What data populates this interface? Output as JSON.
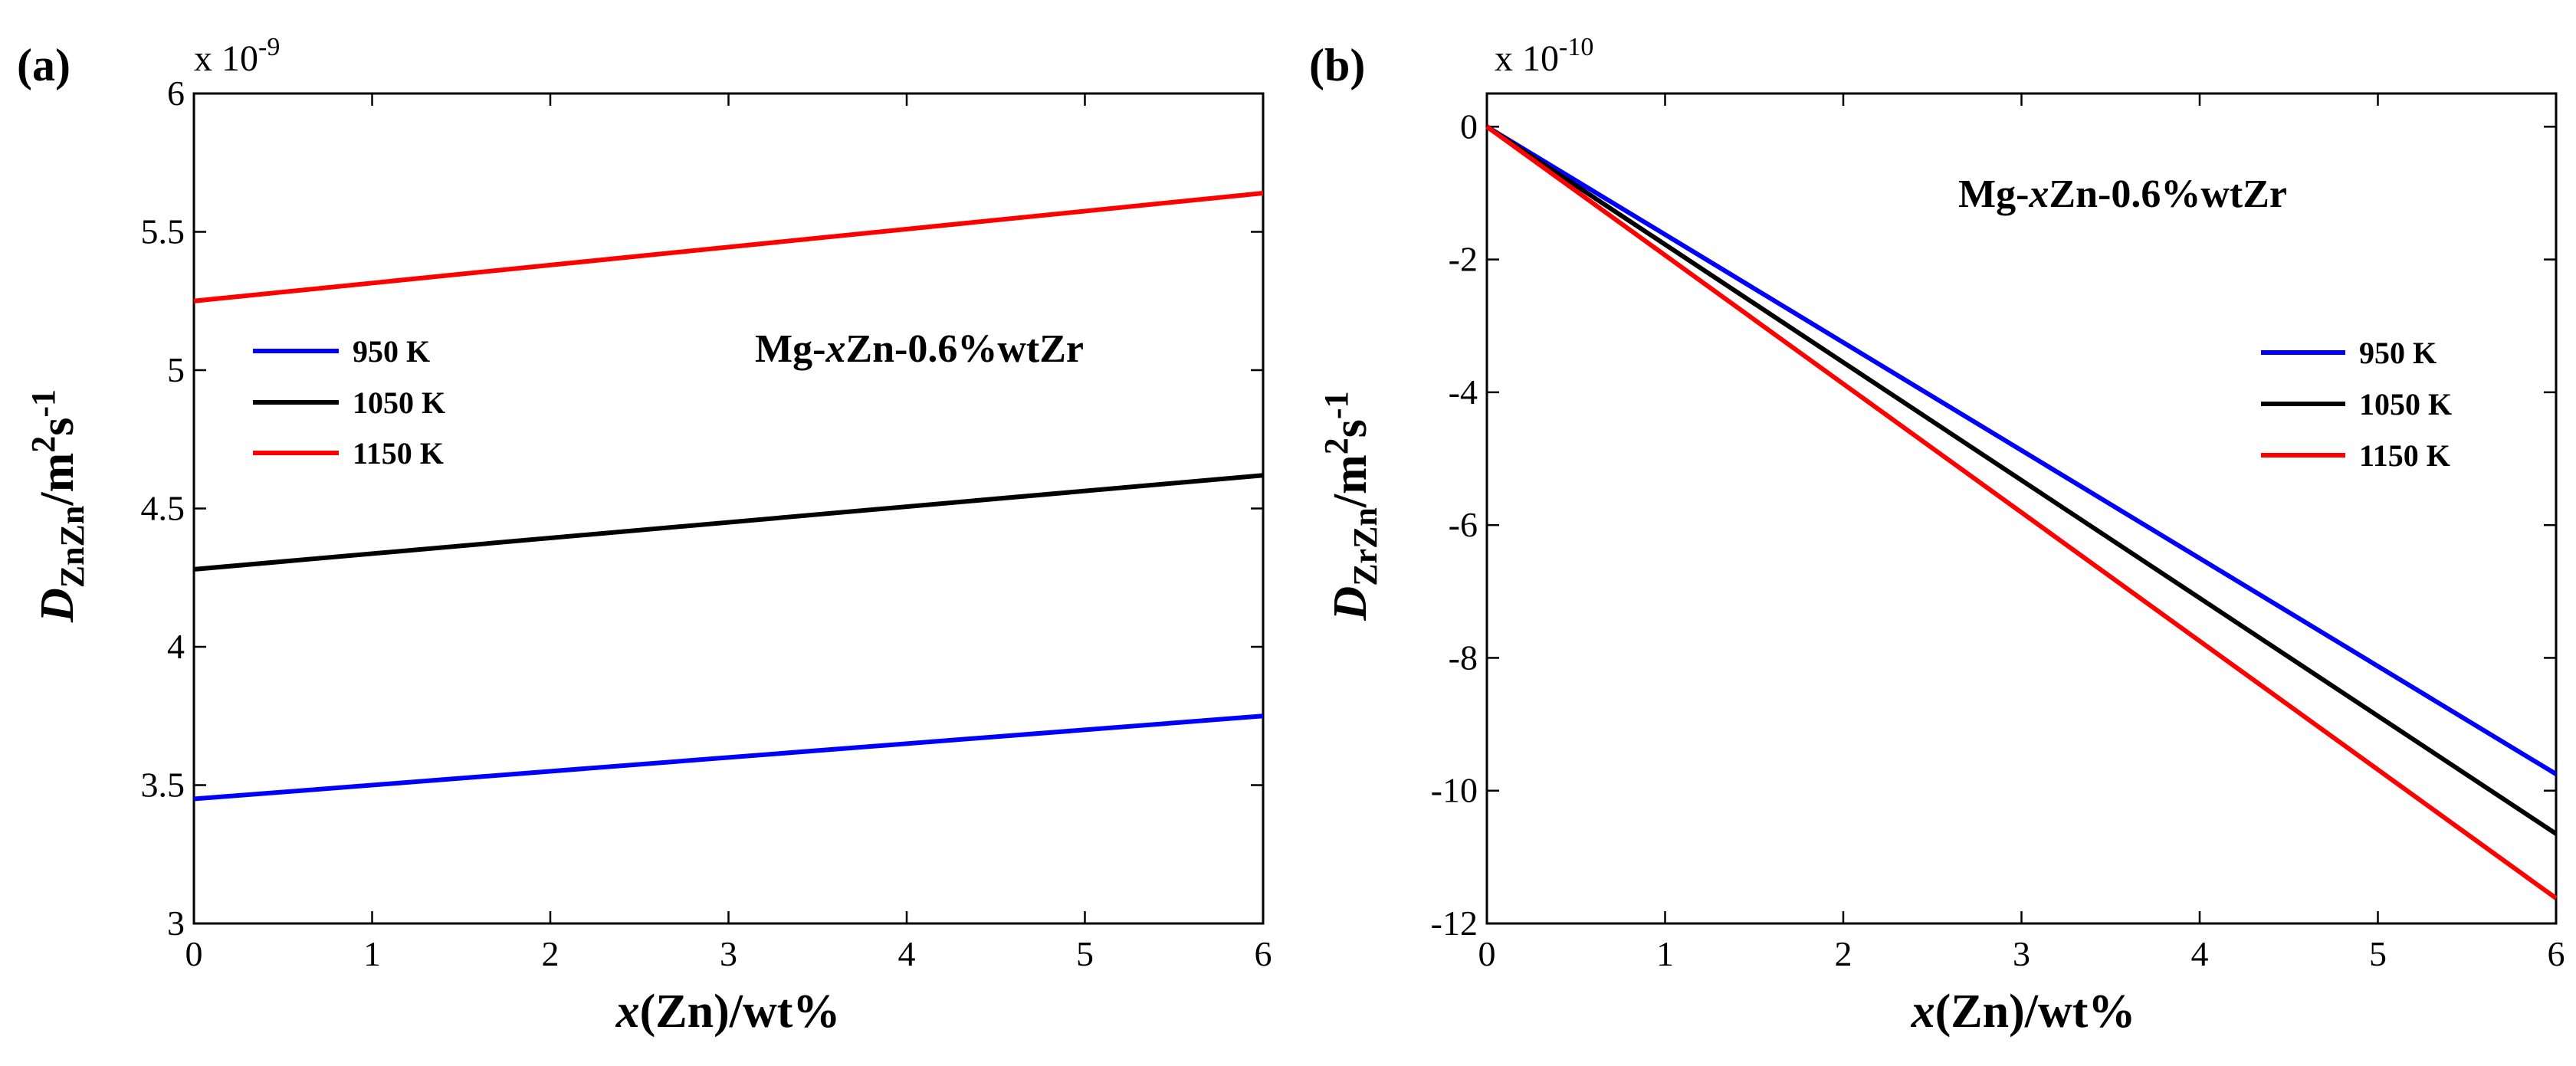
{
  "figure": {
    "panels": [
      "(a)",
      "(b)"
    ]
  },
  "chart_data": [
    {
      "type": "line",
      "panel": "(a)",
      "multiplier_base": "x 10",
      "multiplier_exp": "-9",
      "x": [
        0,
        6
      ],
      "series": [
        {
          "name": "950 K",
          "color": "#0000ff",
          "values": [
            3.45,
            3.75
          ]
        },
        {
          "name": "1050 K",
          "color": "#000000",
          "values": [
            4.28,
            4.62
          ]
        },
        {
          "name": "1150 K",
          "color": "#ff0000",
          "values": [
            5.25,
            5.64
          ]
        }
      ],
      "xlim": [
        0,
        6
      ],
      "ylim": [
        3,
        6
      ],
      "xticks": [
        "0",
        "1",
        "2",
        "3",
        "4",
        "5",
        "6"
      ],
      "yticks": [
        "3",
        "3.5",
        "4",
        "4.5",
        "5",
        "5.5",
        "6"
      ],
      "xlabel": {
        "var": "x",
        "rest": "(Zn)/wt%"
      },
      "ylabel": {
        "var": "D",
        "sub": "ZnZn",
        "unit": "/m",
        "sup1": "2",
        "mid": "s",
        "sup2": "-1"
      },
      "annotation": {
        "pre": "Mg-",
        "var": "x",
        "post": "Zn-0.6%wtZr"
      },
      "legend": "left"
    },
    {
      "type": "line",
      "panel": "(b)",
      "multiplier_base": "x 10",
      "multiplier_exp": "-10",
      "x": [
        0,
        6
      ],
      "series": [
        {
          "name": "950 K",
          "color": "#0000ff",
          "values": [
            0,
            -9.75
          ]
        },
        {
          "name": "1050 K",
          "color": "#000000",
          "values": [
            0,
            -10.65
          ]
        },
        {
          "name": "1150 K",
          "color": "#ff0000",
          "values": [
            0,
            -11.62
          ]
        }
      ],
      "xlim": [
        0,
        6
      ],
      "ylim": [
        -12,
        0.5
      ],
      "xticks": [
        "0",
        "1",
        "2",
        "3",
        "4",
        "5",
        "6"
      ],
      "yticks": [
        "-12",
        "-10",
        "-8",
        "-6",
        "-4",
        "-2",
        "0"
      ],
      "xlabel": {
        "var": "x",
        "rest": "(Zn)/wt%"
      },
      "ylabel": {
        "var": "D",
        "sub": "ZrZn",
        "unit": "/m",
        "sup1": "2",
        "mid": "s",
        "sup2": "-1"
      },
      "annotation": {
        "pre": "Mg-",
        "var": "x",
        "post": "Zn-0.6%wtZr"
      },
      "legend": "right"
    }
  ]
}
